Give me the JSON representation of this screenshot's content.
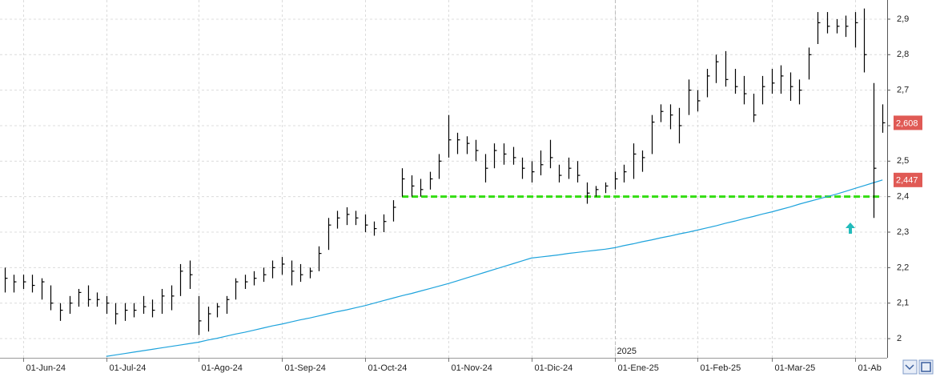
{
  "chart_data": {
    "type": "ohlc",
    "categories": [
      null,
      null,
      "01-Jun-24",
      null,
      null,
      null,
      null,
      null,
      null,
      null,
      null,
      "01-Jul-24",
      null,
      null,
      null,
      null,
      null,
      null,
      null,
      null,
      null,
      "01-Ago-24",
      null,
      null,
      null,
      null,
      null,
      null,
      null,
      null,
      "01-Sep-24",
      null,
      null,
      null,
      null,
      null,
      null,
      null,
      null,
      "01-Oct-24",
      null,
      null,
      null,
      null,
      null,
      null,
      null,
      null,
      "01-Nov-24",
      null,
      null,
      null,
      null,
      null,
      null,
      null,
      null,
      "01-Dic-24",
      null,
      null,
      null,
      null,
      null,
      null,
      null,
      null,
      "01-Ene-25",
      null,
      null,
      null,
      null,
      null,
      null,
      null,
      null,
      "01-Feb-25",
      null,
      null,
      null,
      null,
      null,
      null,
      null,
      "01-Mar-25",
      null,
      null,
      null,
      null,
      null,
      null,
      null,
      null,
      "01-Ab",
      null,
      null,
      null
    ],
    "high": [
      2.2,
      2.18,
      2.18,
      2.18,
      2.17,
      2.15,
      2.1,
      2.12,
      2.14,
      2.15,
      2.13,
      2.12,
      2.1,
      2.1,
      2.1,
      2.12,
      2.11,
      2.14,
      2.15,
      2.21,
      2.22,
      2.12,
      2.09,
      2.1,
      2.12,
      2.17,
      2.18,
      2.19,
      2.2,
      2.22,
      2.23,
      2.22,
      2.21,
      2.2,
      2.26,
      2.34,
      2.36,
      2.37,
      2.36,
      2.35,
      2.33,
      2.35,
      2.39,
      2.48,
      2.46,
      2.45,
      2.47,
      2.52,
      2.63,
      2.58,
      2.57,
      2.56,
      2.52,
      2.55,
      2.55,
      2.54,
      2.51,
      2.5,
      2.53,
      2.56,
      2.49,
      2.51,
      2.5,
      2.44,
      2.43,
      2.44,
      2.47,
      2.49,
      2.55,
      2.53,
      2.63,
      2.66,
      2.66,
      2.65,
      2.73,
      2.7,
      2.76,
      2.8,
      2.81,
      2.76,
      2.74,
      2.69,
      2.74,
      2.76,
      2.77,
      2.75,
      2.73,
      2.82,
      2.92,
      2.92,
      2.9,
      2.91,
      2.92,
      2.93,
      2.72,
      2.66
    ],
    "low": [
      2.13,
      2.13,
      2.14,
      2.13,
      2.11,
      2.08,
      2.05,
      2.07,
      2.09,
      2.09,
      2.09,
      2.07,
      2.04,
      2.05,
      2.06,
      2.07,
      2.06,
      2.07,
      2.08,
      2.12,
      2.14,
      2.01,
      2.02,
      2.06,
      2.07,
      2.11,
      2.14,
      2.15,
      2.16,
      2.17,
      2.18,
      2.15,
      2.16,
      2.17,
      2.19,
      2.25,
      2.31,
      2.32,
      2.32,
      2.3,
      2.29,
      2.3,
      2.33,
      2.4,
      2.4,
      2.4,
      2.42,
      2.45,
      2.51,
      2.52,
      2.52,
      2.5,
      2.44,
      2.48,
      2.49,
      2.49,
      2.45,
      2.44,
      2.46,
      2.48,
      2.44,
      2.45,
      2.44,
      2.38,
      2.4,
      2.41,
      2.42,
      2.44,
      2.45,
      2.47,
      2.52,
      2.61,
      2.59,
      2.55,
      2.63,
      2.64,
      2.68,
      2.72,
      2.71,
      2.69,
      2.66,
      2.61,
      2.66,
      2.69,
      2.69,
      2.67,
      2.66,
      2.73,
      2.83,
      2.86,
      2.86,
      2.85,
      2.82,
      2.75,
      2.34,
      2.58
    ],
    "close": [
      2.17,
      2.16,
      2.16,
      2.15,
      2.16,
      2.1,
      2.08,
      2.1,
      2.13,
      2.11,
      2.11,
      2.1,
      2.07,
      2.08,
      2.08,
      2.09,
      2.08,
      2.12,
      2.12,
      2.19,
      2.18,
      2.05,
      2.07,
      2.09,
      2.11,
      2.16,
      2.16,
      2.17,
      2.18,
      2.2,
      2.21,
      2.19,
      2.18,
      2.19,
      2.24,
      2.32,
      2.34,
      2.35,
      2.34,
      2.32,
      2.31,
      2.33,
      2.37,
      2.45,
      2.43,
      2.42,
      2.45,
      2.5,
      2.56,
      2.56,
      2.55,
      2.53,
      2.48,
      2.53,
      2.52,
      2.51,
      2.48,
      2.47,
      2.49,
      2.51,
      2.46,
      2.48,
      2.46,
      2.41,
      2.42,
      2.43,
      2.45,
      2.47,
      2.52,
      2.51,
      2.61,
      2.64,
      2.63,
      2.6,
      2.7,
      2.67,
      2.74,
      2.78,
      2.73,
      2.71,
      2.69,
      2.63,
      2.71,
      2.72,
      2.74,
      2.71,
      2.7,
      2.8,
      2.89,
      2.88,
      2.88,
      2.88,
      2.89,
      2.8,
      2.48,
      2.608
    ],
    "color": "#000000",
    "moving_average": {
      "color": "#1ea3dc",
      "values": [
        null,
        null,
        null,
        null,
        null,
        null,
        null,
        null,
        null,
        null,
        null,
        1.95,
        1.954,
        1.958,
        1.962,
        1.966,
        1.97,
        1.974,
        1.978,
        1.982,
        1.986,
        1.99,
        1.996,
        2.001,
        2.007,
        2.013,
        2.018,
        2.024,
        2.03,
        2.036,
        2.041,
        2.047,
        2.053,
        2.058,
        2.064,
        2.07,
        2.076,
        2.081,
        2.087,
        2.093,
        2.1,
        2.107,
        2.114,
        2.121,
        2.127,
        2.134,
        2.141,
        2.148,
        2.155,
        2.163,
        2.171,
        2.179,
        2.187,
        2.195,
        2.203,
        2.211,
        2.219,
        2.227,
        2.23,
        2.233,
        2.236,
        2.24,
        2.243,
        2.246,
        2.249,
        2.252,
        2.256,
        2.262,
        2.267,
        2.273,
        2.278,
        2.284,
        2.289,
        2.295,
        2.3,
        2.306,
        2.312,
        2.318,
        2.325,
        2.331,
        2.338,
        2.344,
        2.351,
        2.357,
        2.364,
        2.371,
        2.379,
        2.386,
        2.393,
        2.4,
        2.407,
        2.415,
        2.423,
        2.431,
        2.439,
        2.447
      ]
    },
    "support_level": {
      "value": 2.4,
      "color": "#33dd11"
    },
    "price_tags": [
      {
        "value": 2.608,
        "label": "2,608"
      },
      {
        "value": 2.447,
        "label": "2,447"
      }
    ],
    "year_label": "2025",
    "ylim": [
      1.946,
      2.954
    ],
    "yticks": [
      {
        "value": 2.0,
        "label": "2"
      },
      {
        "value": 2.1,
        "label": "2,1"
      },
      {
        "value": 2.2,
        "label": "2,2"
      },
      {
        "value": 2.3,
        "label": "2,3"
      },
      {
        "value": 2.4,
        "label": "2,4"
      },
      {
        "value": 2.5,
        "label": "2,5"
      },
      {
        "value": 2.6,
        "label": "2,6"
      },
      {
        "value": 2.7,
        "label": "2,7"
      },
      {
        "value": 2.8,
        "label": "2,8"
      },
      {
        "value": 2.9,
        "label": "2,9"
      }
    ],
    "grid": true
  }
}
